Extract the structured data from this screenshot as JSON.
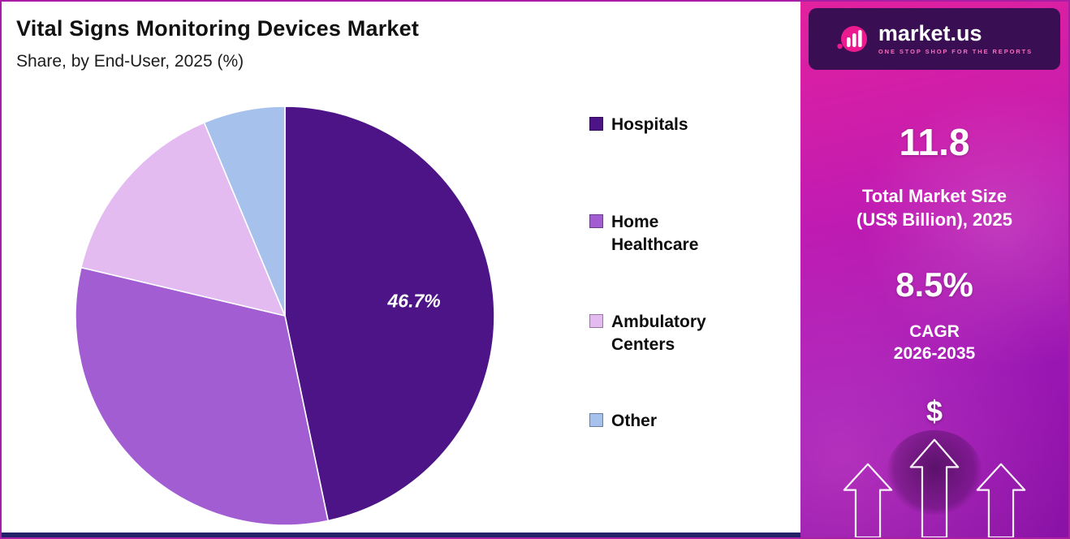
{
  "header": {
    "title": "Vital Signs Monitoring Devices Market",
    "subtitle": "Share, by End-User, 2025 (%)"
  },
  "chart_data": {
    "type": "pie",
    "title": "Vital Signs Monitoring Devices Market",
    "subtitle": "Share, by End-User, 2025 (%)",
    "categories": [
      "Hospitals",
      "Home Healthcare",
      "Ambulatory Centers",
      "Other"
    ],
    "values": [
      46.7,
      32.0,
      15.0,
      6.3
    ],
    "colors": [
      "#4c1486",
      "#a25dd2",
      "#e3bbf1",
      "#a6c1ec"
    ],
    "data_label": {
      "series": "Hospitals",
      "text": "46.7%"
    },
    "start_angle_deg": 0,
    "direction": "clockwise",
    "legend_position": "right",
    "slice_border_color": "#ffffff"
  },
  "legend": {
    "items": [
      {
        "label": "Hospitals",
        "color": "#4c1486"
      },
      {
        "label": "Home Healthcare",
        "color": "#a25dd2"
      },
      {
        "label": "Ambulatory Centers",
        "color": "#e3bbf1"
      },
      {
        "label": "Other",
        "color": "#a6c1ec"
      }
    ]
  },
  "sidebar": {
    "logo": {
      "name": "market.us",
      "tagline": "ONE STOP SHOP FOR THE REPORTS"
    },
    "stat1": {
      "value": "11.8",
      "label_line1": "Total Market Size",
      "label_line2": "(US$ Billion), 2025"
    },
    "stat2": {
      "value": "8.5%",
      "label_line1": "CAGR",
      "label_line2": "2026-2035"
    },
    "currency_symbol": "$"
  },
  "colors": {
    "frame_border": "#a81fa6",
    "bottom_bar": "#232268",
    "sidebar_logo_bg": "#3a0e52",
    "sidebar_gradient_top": "#e2219e",
    "sidebar_gradient_bottom": "#8a12a6"
  }
}
